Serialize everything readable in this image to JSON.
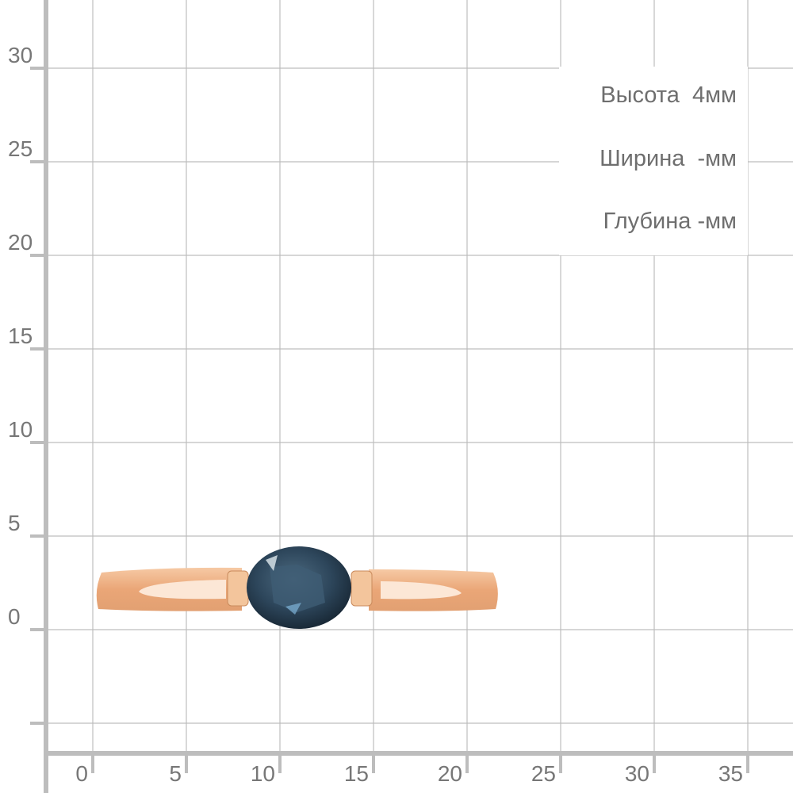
{
  "grid": {
    "x_ticks": [
      "0",
      "5",
      "10",
      "15",
      "20",
      "25",
      "30",
      "35"
    ],
    "y_ticks": [
      "0",
      "5",
      "10",
      "15",
      "20",
      "25",
      "30"
    ],
    "unit": "mm",
    "line_color": "#bdbdbd",
    "axis_color": "#bdbdbd",
    "label_color": "#777777"
  },
  "dimensions": {
    "height": "Высота  4мм",
    "width": "Ширина  -мм",
    "depth": "Глубина -мм"
  },
  "product": {
    "type": "ring",
    "metal_color": "#e8a878",
    "stone_color": "#2f4a60"
  }
}
